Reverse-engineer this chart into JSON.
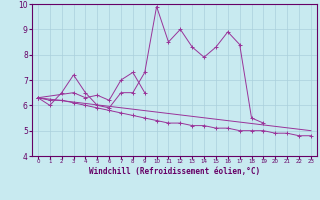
{
  "xlabel": "Windchill (Refroidissement éolien,°C)",
  "bg_color": "#c8eaf0",
  "line_color": "#993399",
  "grid_color": "#aad0dc",
  "x_data": [
    0,
    1,
    2,
    3,
    4,
    5,
    6,
    7,
    8,
    9,
    10,
    11,
    12,
    13,
    14,
    15,
    16,
    17,
    18,
    19,
    20,
    21,
    22,
    23
  ],
  "line1": [
    6.3,
    6.0,
    6.5,
    7.2,
    6.5,
    6.0,
    5.9,
    6.5,
    6.5,
    7.3,
    9.9,
    8.5,
    9.0,
    8.3,
    7.9,
    8.3,
    8.9,
    8.4,
    5.5,
    5.3,
    null,
    null,
    null,
    null
  ],
  "line2": [
    6.3,
    null,
    null,
    6.5,
    6.3,
    6.4,
    6.2,
    7.0,
    7.3,
    6.5,
    null,
    null,
    null,
    null,
    null,
    null,
    null,
    null,
    null,
    null,
    null,
    null,
    null,
    null
  ],
  "line3": [
    6.3,
    6.2,
    6.2,
    6.1,
    6.0,
    5.9,
    5.8,
    5.7,
    5.6,
    5.5,
    5.4,
    5.3,
    5.3,
    5.2,
    5.2,
    5.1,
    5.1,
    5.0,
    5.0,
    5.0,
    4.9,
    4.9,
    4.8,
    4.8
  ],
  "line4_x": [
    0,
    23
  ],
  "line4_y": [
    6.3,
    5.0
  ],
  "ylim": [
    4,
    10
  ],
  "xlim": [
    -0.5,
    23.5
  ],
  "yticks": [
    4,
    5,
    6,
    7,
    8,
    9,
    10
  ],
  "xticks": [
    0,
    1,
    2,
    3,
    4,
    5,
    6,
    7,
    8,
    9,
    10,
    11,
    12,
    13,
    14,
    15,
    16,
    17,
    18,
    19,
    20,
    21,
    22,
    23
  ],
  "tick_color": "#660066",
  "spine_color": "#660066",
  "label_fontsize": 5.0,
  "xlabel_fontsize": 5.5
}
